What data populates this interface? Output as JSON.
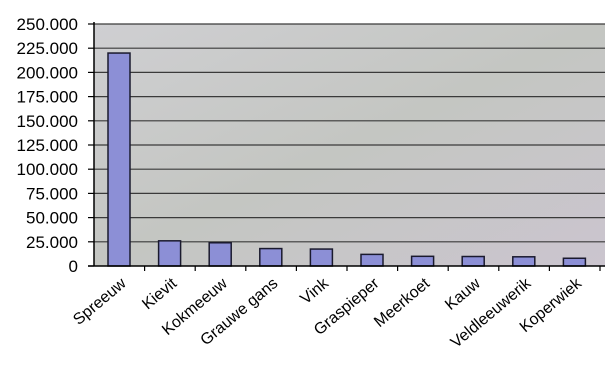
{
  "chart_data": {
    "type": "bar",
    "title": "",
    "xlabel": "",
    "ylabel": "",
    "categories": [
      "Spreeuw",
      "Kievit",
      "Kokmeeuw",
      "Grauwe gans",
      "Vink",
      "Graspieper",
      "Meerkoet",
      "Kauw",
      "Veldleeuwerik",
      "Koperwiek"
    ],
    "values": [
      220000,
      26000,
      24000,
      18000,
      17500,
      12000,
      10000,
      9800,
      9500,
      8000
    ],
    "ylim": [
      0,
      250000
    ],
    "yticks": [
      "0",
      "25.000",
      "50.000",
      "75.000",
      "100.000",
      "125.000",
      "150.000",
      "175.000",
      "200.000",
      "225.000",
      "250.000"
    ],
    "grid": true,
    "legend": "none",
    "colors": {
      "bar_fill": "#8c8fd6",
      "bar_stroke": "#1a1a2e",
      "plot_bg": "#c8c6cc",
      "gridline": "#3a3a3a"
    }
  }
}
